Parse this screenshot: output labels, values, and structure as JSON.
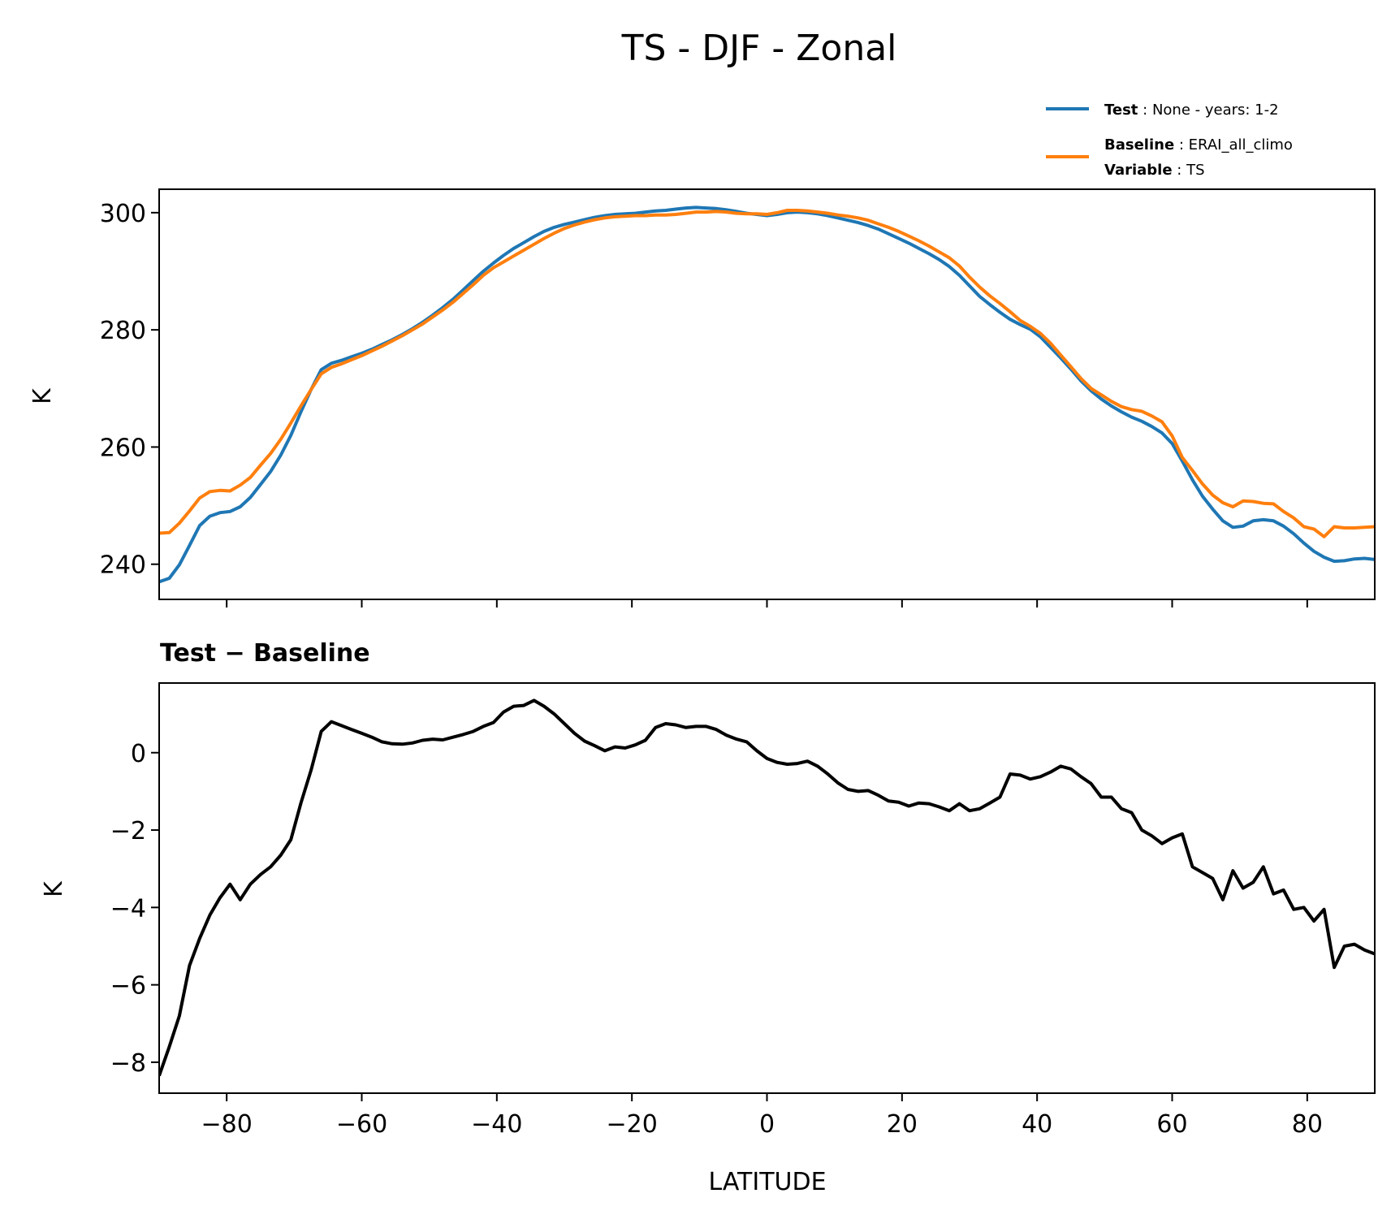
{
  "figure": {
    "title": "TS - DJF - Zonal",
    "legend": {
      "test": {
        "key": "Test",
        "value": "None - years: 1-2",
        "color": "#1f77b4"
      },
      "baseline": {
        "key": "Baseline",
        "value": "ERAI_all_climo",
        "color": "#ff7f0e"
      },
      "variable": {
        "key": "Variable",
        "value": "TS"
      }
    },
    "top_panel": {
      "ylabel": "K"
    },
    "bottom_panel": {
      "title": "Test − Baseline",
      "ylabel": "K",
      "xlabel": "LATITUDE"
    }
  },
  "chart_data": [
    {
      "type": "line",
      "title": "TS - DJF - Zonal",
      "xlabel": "",
      "ylabel": "K",
      "xlim": [
        -90,
        90
      ],
      "ylim": [
        234,
        304
      ],
      "yticks": [
        240,
        260,
        280,
        300
      ],
      "xticks": [
        -80,
        -60,
        -40,
        -20,
        0,
        20,
        40,
        60,
        80
      ],
      "legend_position": "top-right, above plot",
      "x": [
        -90,
        -88.5,
        -87,
        -85.5,
        -84,
        -82.5,
        -81,
        -79.5,
        -78,
        -76.5,
        -75,
        -73.5,
        -72,
        -70.5,
        -69,
        -67.5,
        -66,
        -64.5,
        -63,
        -61.5,
        -60,
        -58.5,
        -57,
        -55.5,
        -54,
        -52.5,
        -51,
        -49.5,
        -48,
        -46.5,
        -45,
        -43.5,
        -42,
        -40.5,
        -39,
        -37.5,
        -36,
        -34.5,
        -33,
        -31.5,
        -30,
        -28.5,
        -27,
        -25.5,
        -24,
        -22.5,
        -21,
        -19.5,
        -18,
        -16.5,
        -15,
        -13.5,
        -12,
        -10.5,
        -9,
        -7.5,
        -6,
        -4.5,
        -3,
        -1.5,
        0,
        1.5,
        3,
        4.5,
        6,
        7.5,
        9,
        10.5,
        12,
        13.5,
        15,
        16.5,
        18,
        19.5,
        21,
        22.5,
        24,
        25.5,
        27,
        28.5,
        30,
        31.5,
        33,
        34.5,
        36,
        37.5,
        39,
        40.5,
        42,
        43.5,
        45,
        46.5,
        48,
        49.5,
        51,
        52.5,
        54,
        55.5,
        57,
        58.5,
        60,
        61.5,
        63,
        64.5,
        66,
        67.5,
        69,
        70.5,
        72,
        73.5,
        75,
        76.5,
        78,
        79.5,
        81,
        82.5,
        84,
        85.5,
        87,
        88.5,
        90
      ],
      "series": [
        {
          "name": "Test",
          "color": "#1f77b4",
          "values": [
            237.0,
            237.6,
            239.9,
            243.2,
            246.6,
            248.2,
            248.8,
            249.0,
            249.8,
            251.4,
            253.6,
            255.8,
            258.6,
            262.0,
            266.0,
            269.8,
            273.2,
            274.3,
            274.8,
            275.4,
            276.0,
            276.7,
            277.5,
            278.3,
            279.2,
            280.2,
            281.3,
            282.5,
            283.8,
            285.2,
            286.8,
            288.4,
            290.0,
            291.4,
            292.7,
            293.9,
            294.9,
            295.9,
            296.8,
            297.5,
            298.0,
            298.4,
            298.8,
            299.2,
            299.5,
            299.7,
            299.8,
            299.9,
            300.1,
            300.3,
            300.4,
            300.6,
            300.8,
            300.9,
            300.8,
            300.7,
            300.5,
            300.2,
            299.9,
            299.7,
            299.5,
            299.7,
            300.0,
            300.1,
            300.0,
            299.8,
            299.5,
            299.1,
            298.7,
            298.3,
            297.8,
            297.2,
            296.4,
            295.6,
            294.8,
            293.9,
            293.0,
            292.0,
            290.8,
            289.3,
            287.5,
            285.7,
            284.3,
            283.0,
            281.8,
            280.9,
            280.1,
            278.8,
            277.0,
            275.2,
            273.3,
            271.3,
            269.6,
            268.2,
            267.0,
            266.0,
            265.1,
            264.4,
            263.5,
            262.4,
            260.6,
            257.6,
            254.4,
            251.6,
            249.4,
            247.4,
            246.3,
            246.5,
            247.4,
            247.6,
            247.4,
            246.5,
            245.2,
            243.6,
            242.2,
            241.2,
            240.5,
            240.6,
            240.9,
            241.0,
            240.8
          ]
        },
        {
          "name": "Baseline",
          "color": "#ff7f0e",
          "values": [
            245.3,
            245.4,
            247.0,
            249.1,
            251.3,
            252.4,
            252.6,
            252.5,
            253.5,
            254.8,
            256.9,
            258.9,
            261.3,
            264.1,
            267.0,
            269.8,
            272.5,
            273.6,
            274.2,
            274.9,
            275.6,
            276.4,
            277.2,
            278.1,
            279.0,
            280.0,
            281.0,
            282.2,
            283.4,
            284.7,
            286.2,
            287.7,
            289.3,
            290.6,
            291.6,
            292.6,
            293.6,
            294.6,
            295.6,
            296.5,
            297.3,
            297.9,
            298.4,
            298.8,
            299.1,
            299.3,
            299.4,
            299.5,
            299.5,
            299.6,
            299.6,
            299.7,
            299.9,
            300.1,
            300.1,
            300.2,
            300.1,
            299.9,
            299.8,
            299.8,
            299.7,
            300.0,
            300.4,
            300.4,
            300.3,
            300.1,
            299.9,
            299.6,
            299.4,
            299.1,
            298.7,
            298.1,
            297.5,
            296.8,
            296.0,
            295.2,
            294.3,
            293.3,
            292.3,
            290.9,
            289.0,
            287.3,
            285.8,
            284.5,
            283.1,
            281.6,
            280.6,
            279.4,
            277.7,
            275.7,
            273.7,
            271.7,
            270.0,
            268.9,
            267.8,
            266.9,
            266.4,
            266.1,
            265.3,
            264.3,
            261.9,
            258.2,
            256.0,
            253.7,
            251.8,
            250.5,
            249.8,
            250.8,
            250.7,
            250.4,
            250.3,
            249.0,
            247.9,
            246.4,
            246.0,
            244.7,
            246.4,
            246.2,
            246.2,
            246.3,
            246.4
          ]
        }
      ]
    },
    {
      "type": "line",
      "title": "Test − Baseline",
      "xlabel": "LATITUDE",
      "ylabel": "K",
      "xlim": [
        -90,
        90
      ],
      "ylim": [
        -8.8,
        1.8
      ],
      "yticks": [
        -8,
        -6,
        -4,
        -2,
        0
      ],
      "xticks": [
        -80,
        -60,
        -40,
        -20,
        0,
        20,
        40,
        60,
        80
      ],
      "x": [
        -90,
        -88.5,
        -87,
        -85.5,
        -84,
        -82.5,
        -81,
        -79.5,
        -78,
        -76.5,
        -75,
        -73.5,
        -72,
        -70.5,
        -69,
        -67.5,
        -66,
        -64.5,
        -63,
        -61.5,
        -60,
        -58.5,
        -57,
        -55.5,
        -54,
        -52.5,
        -51,
        -49.5,
        -48,
        -46.5,
        -45,
        -43.5,
        -42,
        -40.5,
        -39,
        -37.5,
        -36,
        -34.5,
        -33,
        -31.5,
        -30,
        -28.5,
        -27,
        -25.5,
        -24,
        -22.5,
        -21,
        -19.5,
        -18,
        -16.5,
        -15,
        -13.5,
        -12,
        -10.5,
        -9,
        -7.5,
        -6,
        -4.5,
        -3,
        -1.5,
        0,
        1.5,
        3,
        4.5,
        6,
        7.5,
        9,
        10.5,
        12,
        13.5,
        15,
        16.5,
        18,
        19.5,
        21,
        22.5,
        24,
        25.5,
        27,
        28.5,
        30,
        31.5,
        33,
        34.5,
        36,
        37.5,
        39,
        40.5,
        42,
        43.5,
        45,
        46.5,
        48,
        49.5,
        51,
        52.5,
        54,
        55.5,
        57,
        58.5,
        60,
        61.5,
        63,
        64.5,
        66,
        67.5,
        69,
        70.5,
        72,
        73.5,
        75,
        76.5,
        78,
        79.5,
        81,
        82.5,
        84,
        85.5,
        87,
        88.5,
        90
      ],
      "series": [
        {
          "color": "#000000",
          "values": [
            -8.35,
            -7.6,
            -6.8,
            -5.5,
            -4.8,
            -4.2,
            -3.75,
            -3.4,
            -3.8,
            -3.4,
            -3.15,
            -2.95,
            -2.65,
            -2.25,
            -1.3,
            -0.45,
            0.55,
            0.8,
            0.7,
            0.6,
            0.5,
            0.4,
            0.28,
            0.23,
            0.22,
            0.25,
            0.32,
            0.35,
            0.33,
            0.4,
            0.47,
            0.55,
            0.68,
            0.78,
            1.05,
            1.2,
            1.22,
            1.35,
            1.2,
            1.0,
            0.75,
            0.5,
            0.3,
            0.18,
            0.05,
            0.15,
            0.12,
            0.2,
            0.32,
            0.65,
            0.75,
            0.72,
            0.65,
            0.68,
            0.68,
            0.6,
            0.45,
            0.35,
            0.28,
            0.05,
            -0.15,
            -0.25,
            -0.3,
            -0.28,
            -0.22,
            -0.35,
            -0.55,
            -0.78,
            -0.95,
            -1.0,
            -0.98,
            -1.1,
            -1.25,
            -1.28,
            -1.38,
            -1.3,
            -1.32,
            -1.4,
            -1.5,
            -1.32,
            -1.5,
            -1.45,
            -1.3,
            -1.15,
            -0.55,
            -0.58,
            -0.68,
            -0.62,
            -0.5,
            -0.35,
            -0.42,
            -0.62,
            -0.8,
            -1.15,
            -1.15,
            -1.45,
            -1.55,
            -2.0,
            -2.15,
            -2.35,
            -2.2,
            -2.1,
            -2.95,
            -3.1,
            -3.25,
            -3.8,
            -3.05,
            -3.5,
            -3.35,
            -2.95,
            -3.65,
            -3.55,
            -4.05,
            -4.0,
            -4.35,
            -4.05,
            -5.55,
            -5.0,
            -4.95,
            -5.1,
            -5.2
          ]
        }
      ]
    }
  ]
}
